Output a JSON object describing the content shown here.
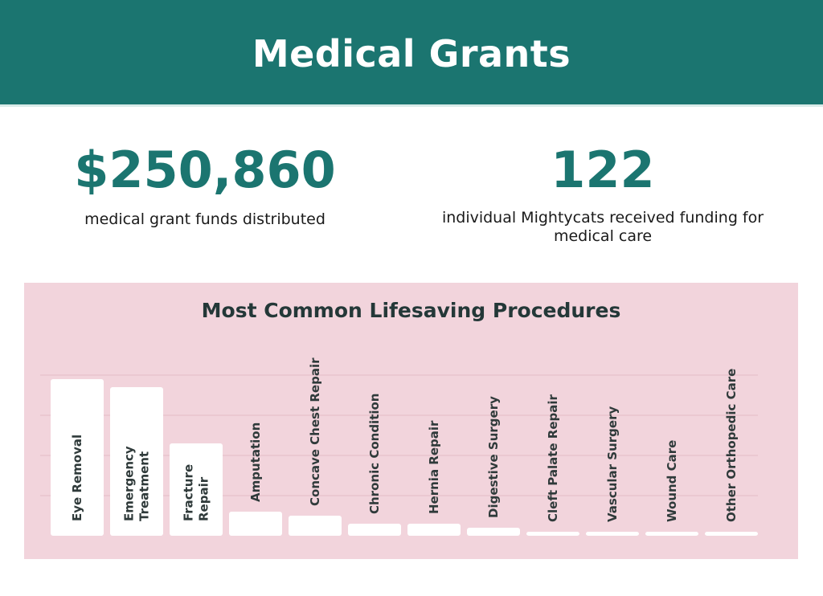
{
  "header": {
    "title": "Medical Grants"
  },
  "stats": [
    {
      "value": "$250,860",
      "description": "medical grant funds distributed"
    },
    {
      "value": "122",
      "description": "individual Mightycats received funding for medical care"
    }
  ],
  "colors": {
    "header_bg": "#1b7570",
    "accent": "#1b7570",
    "chart_bg": "#f2d4dc",
    "bar": "#ffffff",
    "label_text": "#2f3a3a"
  },
  "chart_data": {
    "type": "bar",
    "title": "Most Common Lifesaving Procedures",
    "categories": [
      "Eye Removal",
      "Emergency Treatment",
      "Fracture Repair",
      "Amputation",
      "Concave Chest Repair",
      "Chronic Condition",
      "Hernia Repair",
      "Digestive Surgery",
      "Cleft Palate Repair",
      "Vascular Surgery",
      "Wound Care",
      "Other Orthopedic Care"
    ],
    "values": [
      19.5,
      18.5,
      11.5,
      3,
      2.5,
      1.5,
      1.5,
      1,
      0.5,
      0.5,
      0.5,
      0.5
    ],
    "ylim": [
      0,
      20
    ],
    "grid": true,
    "xlabel": "",
    "ylabel": ""
  }
}
